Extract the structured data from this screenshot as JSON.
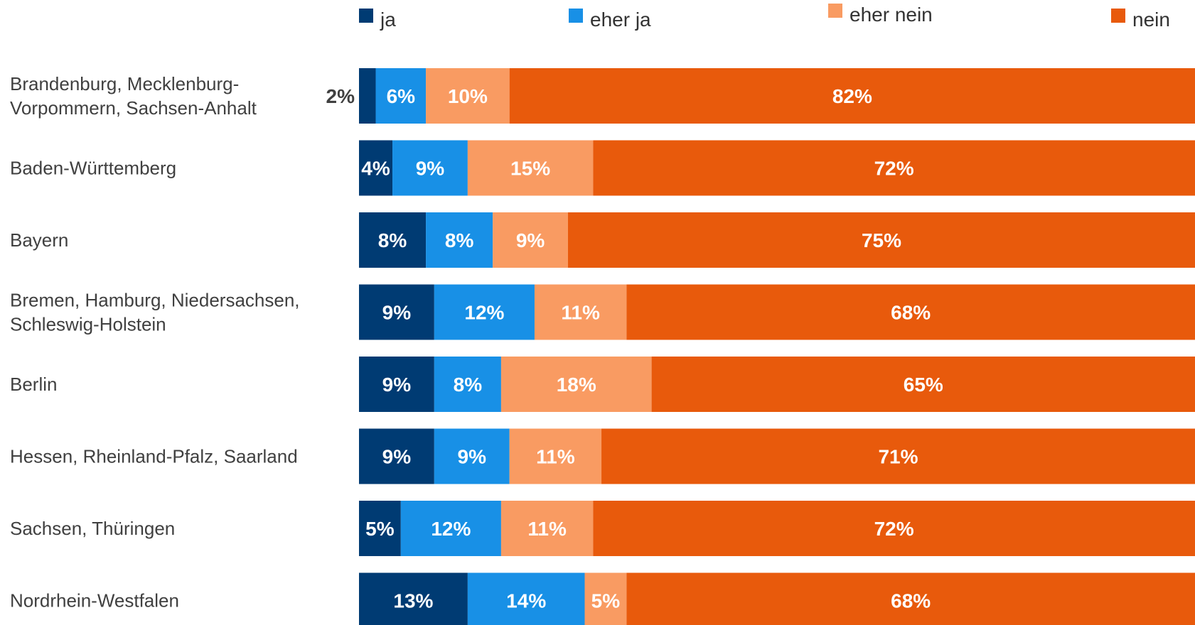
{
  "chart_data": {
    "type": "bar",
    "orientation": "horizontal",
    "stacked": true,
    "value_format": "percent",
    "legend_position": "top",
    "grid": false,
    "xlim": [
      0,
      100
    ],
    "series": [
      {
        "name": "ja",
        "color": "#003B73",
        "values": [
          2,
          4,
          8,
          9,
          9,
          9,
          5,
          13
        ]
      },
      {
        "name": "eher ja",
        "color": "#1890E6",
        "values": [
          6,
          9,
          8,
          12,
          8,
          9,
          12,
          14
        ]
      },
      {
        "name": "eher nein",
        "color": "#F99B62",
        "values": [
          10,
          15,
          9,
          11,
          18,
          11,
          11,
          5
        ]
      },
      {
        "name": "nein",
        "color": "#E85A0C",
        "values": [
          82,
          72,
          75,
          68,
          65,
          71,
          72,
          68
        ]
      }
    ],
    "categories": [
      [
        "Brandenburg, Mecklenburg-",
        "Vorpommern, Sachsen-Anhalt"
      ],
      [
        "Baden-Württemberg"
      ],
      [
        "Bayern"
      ],
      [
        "Bremen, Hamburg, Niedersachsen,",
        "Schleswig-Holstein"
      ],
      [
        "Berlin"
      ],
      [
        "Hessen, Rheinland-Pfalz, Saarland"
      ],
      [
        "Sachsen, Thüringen"
      ],
      [
        "Nordrhein-Westfalen"
      ]
    ]
  }
}
